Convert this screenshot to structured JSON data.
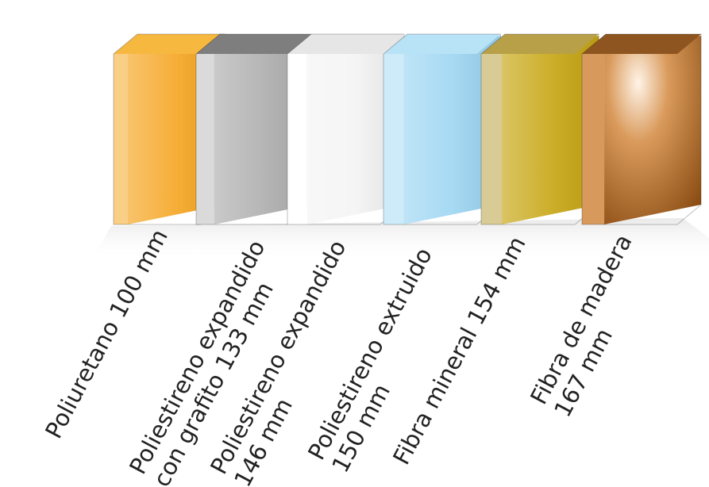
{
  "materials": [
    {
      "label_lines": [
        "Poliuretano 100 mm"
      ],
      "thickness_mm": 100,
      "colors": {
        "front": "#F5A623",
        "side": "#F9CF86",
        "top": "#F7B840"
      }
    },
    {
      "label_lines": [
        "Poliestireno expandido",
        "con grafito 133 mm"
      ],
      "thickness_mm": 133,
      "colors": {
        "front": "#AFAFAF",
        "side": "#DADADA",
        "top": "#7E7E7E"
      }
    },
    {
      "label_lines": [
        "Poliestireno expandido",
        "146 mm"
      ],
      "thickness_mm": 146,
      "colors": {
        "front": "#F4F4F4",
        "side": "#FFFFFF",
        "top": "#E6E6E6"
      }
    },
    {
      "label_lines": [
        "Poliestireno extruido",
        "150 mm"
      ],
      "thickness_mm": 150,
      "colors": {
        "front": "#9ED6F2",
        "side": "#CDEBF9",
        "top": "#B8E2F6"
      }
    },
    {
      "label_lines": [
        "Fibra mineral 154 mm"
      ],
      "thickness_mm": 154,
      "colors": {
        "front": "#C8A716",
        "side": "#D8CB96",
        "top": "#B8A048"
      }
    },
    {
      "label_lines": [
        "Fibra de madera",
        "167 mm"
      ],
      "thickness_mm": 167,
      "colors": {
        "front": "#B4702E",
        "side": "#D79A5C",
        "top": "#8E5520"
      }
    }
  ]
}
